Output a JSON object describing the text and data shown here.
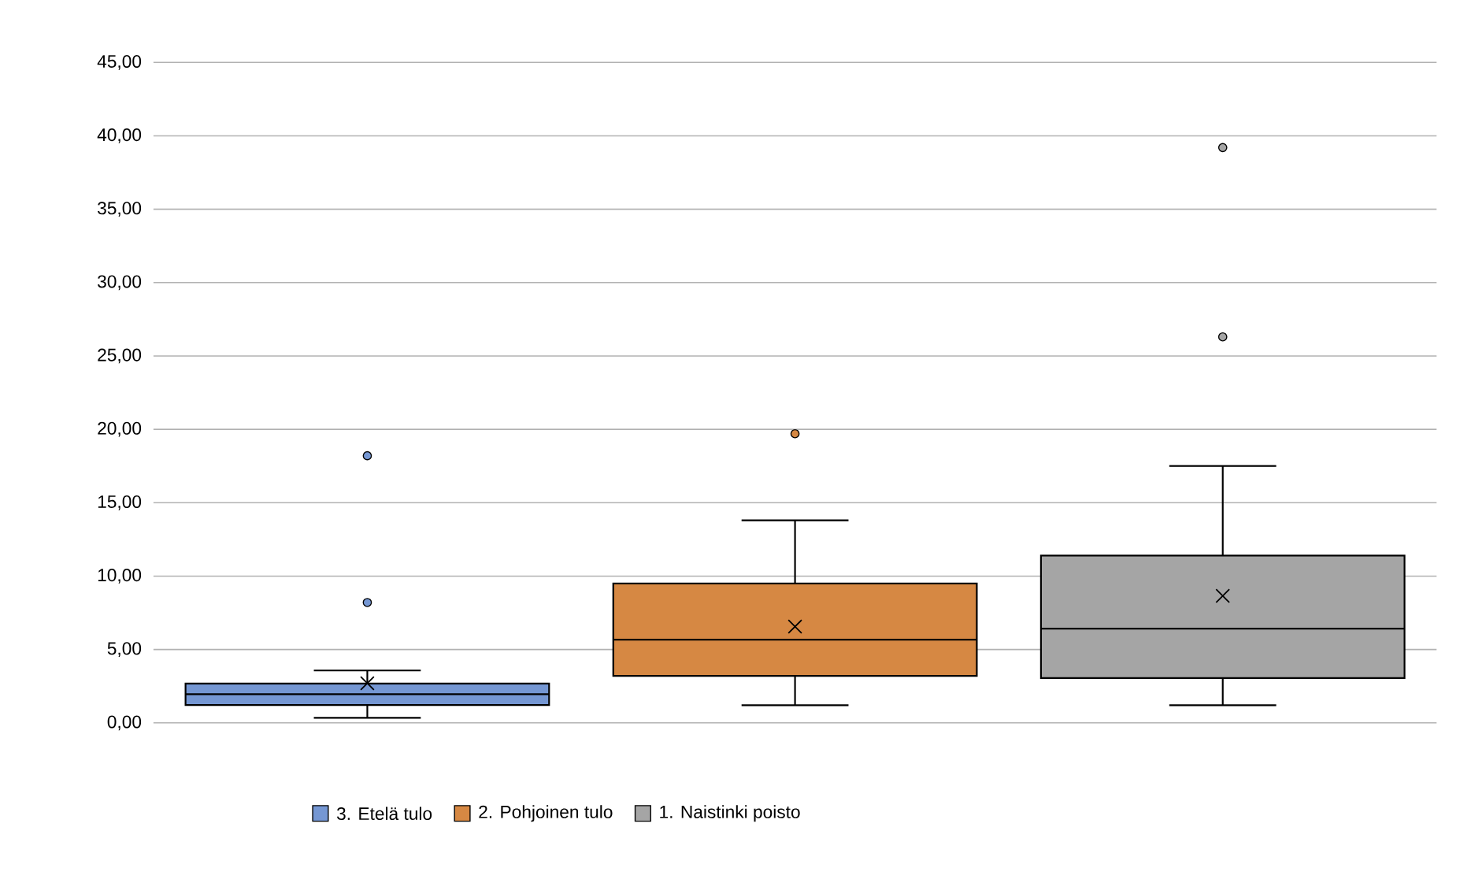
{
  "chart_data": {
    "type": "box",
    "categories": [
      null
    ],
    "ylim": [
      0,
      45
    ],
    "yticks": [
      {
        "value": 0,
        "label": "0,00"
      },
      {
        "value": 5,
        "label": "5,00"
      },
      {
        "value": 10,
        "label": "10,00"
      },
      {
        "value": 15,
        "label": "15,00"
      },
      {
        "value": 20,
        "label": "20,00"
      },
      {
        "value": 25,
        "label": "25,00"
      },
      {
        "value": 30,
        "label": "30,00"
      },
      {
        "value": 35,
        "label": "35,00"
      },
      {
        "value": 40,
        "label": "40,00"
      },
      {
        "value": 45,
        "label": "45,00"
      }
    ],
    "tick_labels": "y",
    "grid": "y",
    "legend": "bottom",
    "marker": "circle",
    "series": [
      {
        "name": "3. Etelä tulo",
        "color": "#7597d3",
        "boxes": [
          {
            "low": 0.34,
            "q1": 1.22,
            "median": 1.95,
            "q3": 2.68,
            "high": 3.57,
            "mean": 2.7,
            "outliers": [
              8.2,
              18.2
            ]
          }
        ]
      },
      {
        "name": "2. Pohjoinen tulo",
        "color": "#d68843",
        "boxes": [
          {
            "low": 1.2,
            "q1": 3.2,
            "median": 5.67,
            "q3": 9.5,
            "high": 13.8,
            "mean": 6.56,
            "outliers": [
              19.7
            ]
          }
        ]
      },
      {
        "name": "1. Naistinki poisto",
        "color": "#a5a5a5",
        "boxes": [
          {
            "low": 1.2,
            "q1": 3.05,
            "median": 6.42,
            "q3": 11.4,
            "high": 17.5,
            "mean": 8.65,
            "outliers": [
              26.3,
              39.2
            ]
          }
        ]
      }
    ]
  }
}
